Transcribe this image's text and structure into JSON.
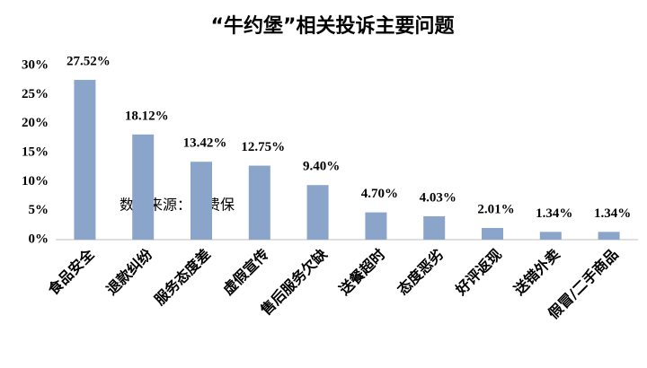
{
  "chart_data": {
    "type": "bar",
    "title": "“牛约堡”相关投诉主要问题",
    "categories": [
      "食品安全",
      "退款纠纷",
      "服务态度差",
      "虚假宣传",
      "售后服务欠缺",
      "送餐超时",
      "态度恶劣",
      "好评返现",
      "送错外卖",
      "假冒/二手商品"
    ],
    "values": [
      27.52,
      18.12,
      13.42,
      12.75,
      9.4,
      4.7,
      4.03,
      2.01,
      1.34,
      1.34
    ],
    "value_labels": [
      "27.52%",
      "18.12%",
      "13.42%",
      "12.75%",
      "9.40%",
      "4.70%",
      "4.03%",
      "2.01%",
      "1.34%",
      "1.34%"
    ],
    "color": "#8aa5c9",
    "ylim": [
      0,
      30
    ],
    "yticks": [
      {
        "value": 0,
        "label": "0%"
      },
      {
        "value": 5,
        "label": "5%"
      },
      {
        "value": 10,
        "label": "10%"
      },
      {
        "value": 15,
        "label": "15%"
      },
      {
        "value": 20,
        "label": "20%"
      },
      {
        "value": 25,
        "label": "25%"
      },
      {
        "value": 30,
        "label": "30%"
      }
    ],
    "grid": false,
    "annotation": "数据来源：消费保"
  }
}
